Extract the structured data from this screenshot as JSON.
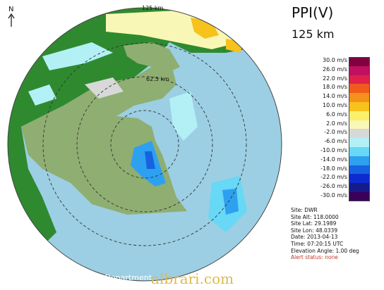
{
  "product": "PPI(V)",
  "range": "125 km",
  "ring_labels": {
    "outer": "125 km",
    "inner": "62.5 km"
  },
  "north": "N",
  "colors": {
    "sea": "#9ccfe4",
    "land": "#8fae72",
    "land_dark": "#2f8a2f",
    "outside": "#ffffff"
  },
  "legend": [
    {
      "label": "30.0 m/s",
      "color": "#800040"
    },
    {
      "label": "26.0 m/s",
      "color": "#c01060"
    },
    {
      "label": "22.0 m/s",
      "color": "#e0204a"
    },
    {
      "label": "18.0 m/s",
      "color": "#f05a1c"
    },
    {
      "label": "14.0 m/s",
      "color": "#f5911a"
    },
    {
      "label": "10.0 m/s",
      "color": "#f7c21c"
    },
    {
      "label": "6.0 m/s",
      "color": "#faf06a"
    },
    {
      "label": "2.0 m/s",
      "color": "#f8f7b5"
    },
    {
      "label": "-2.0 m/s",
      "color": "#d8d8d8"
    },
    {
      "label": "-6.0 m/s",
      "color": "#b2f0f6"
    },
    {
      "label": "-10.0 m/s",
      "color": "#67d8f5"
    },
    {
      "label": "-14.0 m/s",
      "color": "#2ea0f0"
    },
    {
      "label": "-18.0 m/s",
      "color": "#1663e0"
    },
    {
      "label": "-22.0 m/s",
      "color": "#0c2cd0"
    },
    {
      "label": "-26.0 m/s",
      "color": "#161a8a"
    },
    {
      "label": "-30.0 m/s",
      "color": "#3a005a"
    }
  ],
  "site_info": {
    "site": "Site: DWR",
    "alt": "Site Alt: 118.0000",
    "lat": "Site Lat: 29.1989",
    "lon": "Site Lon: 48.0339",
    "date": "Date: 2013-04-13",
    "time": "Time: 07:20:15 UTC",
    "elevation": "Elevation Angle: 1.00 deg",
    "alert": "Alert status: none"
  },
  "credit": "© DGCA Meteorological Department",
  "watermark": "albrari.com"
}
